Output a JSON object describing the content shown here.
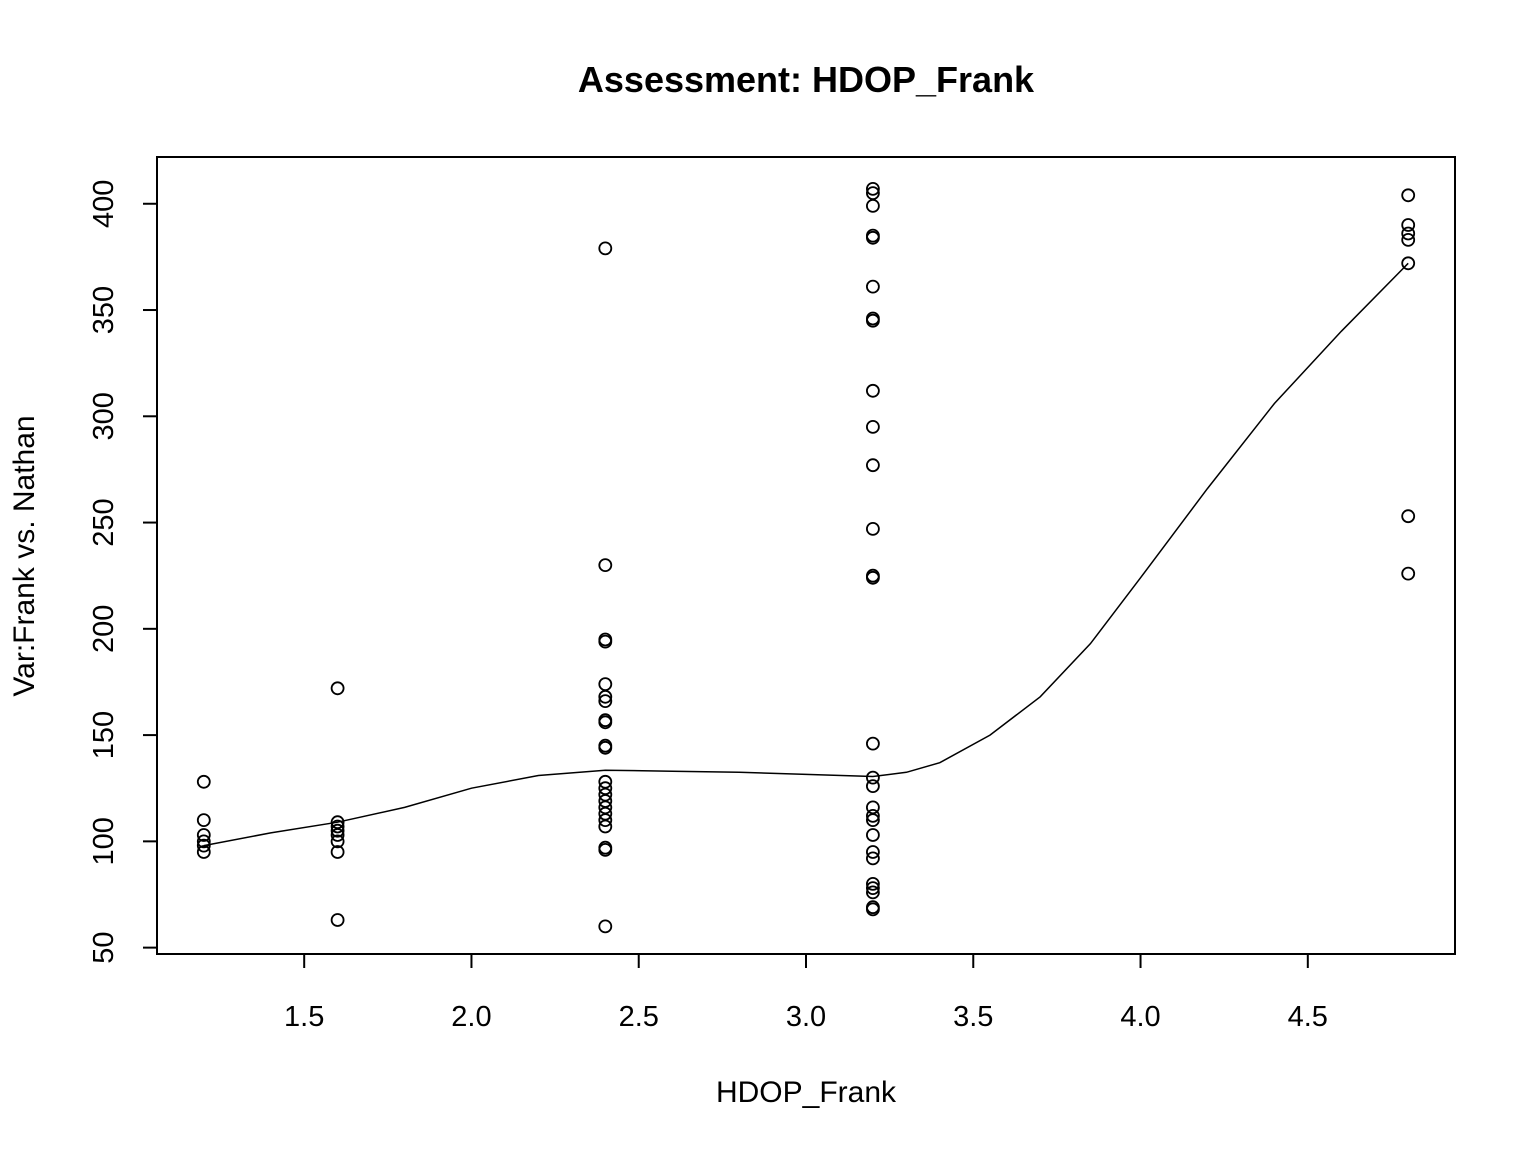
{
  "chart_data": {
    "type": "scatter",
    "title": "Assessment: HDOP_Frank",
    "xlabel": "HDOP_Frank",
    "ylabel": "Var:Frank vs. Nathan",
    "xlim": [
      1.06,
      4.94
    ],
    "ylim": [
      47,
      422
    ],
    "xticks": [
      1.5,
      2.0,
      2.5,
      3.0,
      3.5,
      4.0,
      4.5
    ],
    "xtick_labels": [
      "1.5",
      "2.0",
      "2.5",
      "3.0",
      "3.5",
      "4.0",
      "4.5"
    ],
    "yticks": [
      50,
      100,
      150,
      200,
      250,
      300,
      350,
      400
    ],
    "ytick_labels": [
      "50",
      "100",
      "150",
      "200",
      "250",
      "300",
      "350",
      "400"
    ],
    "grid": false,
    "legend": "none",
    "points": [
      {
        "x": 1.2,
        "y": 128
      },
      {
        "x": 1.2,
        "y": 110
      },
      {
        "x": 1.2,
        "y": 103
      },
      {
        "x": 1.2,
        "y": 100
      },
      {
        "x": 1.2,
        "y": 98
      },
      {
        "x": 1.2,
        "y": 95
      },
      {
        "x": 1.6,
        "y": 172
      },
      {
        "x": 1.6,
        "y": 109
      },
      {
        "x": 1.6,
        "y": 107
      },
      {
        "x": 1.6,
        "y": 105
      },
      {
        "x": 1.6,
        "y": 103
      },
      {
        "x": 1.6,
        "y": 100
      },
      {
        "x": 1.6,
        "y": 95
      },
      {
        "x": 1.6,
        "y": 63
      },
      {
        "x": 2.4,
        "y": 379
      },
      {
        "x": 2.4,
        "y": 230
      },
      {
        "x": 2.4,
        "y": 195
      },
      {
        "x": 2.4,
        "y": 194
      },
      {
        "x": 2.4,
        "y": 174
      },
      {
        "x": 2.4,
        "y": 168
      },
      {
        "x": 2.4,
        "y": 166
      },
      {
        "x": 2.4,
        "y": 157
      },
      {
        "x": 2.4,
        "y": 156
      },
      {
        "x": 2.4,
        "y": 145
      },
      {
        "x": 2.4,
        "y": 144
      },
      {
        "x": 2.4,
        "y": 128
      },
      {
        "x": 2.4,
        "y": 125
      },
      {
        "x": 2.4,
        "y": 122
      },
      {
        "x": 2.4,
        "y": 119
      },
      {
        "x": 2.4,
        "y": 116
      },
      {
        "x": 2.4,
        "y": 113
      },
      {
        "x": 2.4,
        "y": 110
      },
      {
        "x": 2.4,
        "y": 107
      },
      {
        "x": 2.4,
        "y": 97
      },
      {
        "x": 2.4,
        "y": 96
      },
      {
        "x": 2.4,
        "y": 60
      },
      {
        "x": 3.2,
        "y": 407
      },
      {
        "x": 3.2,
        "y": 405
      },
      {
        "x": 3.2,
        "y": 399
      },
      {
        "x": 3.2,
        "y": 385
      },
      {
        "x": 3.2,
        "y": 384
      },
      {
        "x": 3.2,
        "y": 361
      },
      {
        "x": 3.2,
        "y": 346
      },
      {
        "x": 3.2,
        "y": 345
      },
      {
        "x": 3.2,
        "y": 312
      },
      {
        "x": 3.2,
        "y": 295
      },
      {
        "x": 3.2,
        "y": 277
      },
      {
        "x": 3.2,
        "y": 247
      },
      {
        "x": 3.2,
        "y": 225
      },
      {
        "x": 3.2,
        "y": 224
      },
      {
        "x": 3.2,
        "y": 146
      },
      {
        "x": 3.2,
        "y": 130
      },
      {
        "x": 3.2,
        "y": 126
      },
      {
        "x": 3.2,
        "y": 116
      },
      {
        "x": 3.2,
        "y": 112
      },
      {
        "x": 3.2,
        "y": 110
      },
      {
        "x": 3.2,
        "y": 103
      },
      {
        "x": 3.2,
        "y": 95
      },
      {
        "x": 3.2,
        "y": 92
      },
      {
        "x": 3.2,
        "y": 80
      },
      {
        "x": 3.2,
        "y": 78
      },
      {
        "x": 3.2,
        "y": 76
      },
      {
        "x": 3.2,
        "y": 69
      },
      {
        "x": 3.2,
        "y": 68
      },
      {
        "x": 4.8,
        "y": 404
      },
      {
        "x": 4.8,
        "y": 390
      },
      {
        "x": 4.8,
        "y": 386
      },
      {
        "x": 4.8,
        "y": 383
      },
      {
        "x": 4.8,
        "y": 372
      },
      {
        "x": 4.8,
        "y": 253
      },
      {
        "x": 4.8,
        "y": 226
      }
    ],
    "smooth_line": [
      {
        "x": 1.2,
        "y": 98
      },
      {
        "x": 1.4,
        "y": 104
      },
      {
        "x": 1.6,
        "y": 109
      },
      {
        "x": 1.8,
        "y": 116
      },
      {
        "x": 2.0,
        "y": 125
      },
      {
        "x": 2.2,
        "y": 131
      },
      {
        "x": 2.4,
        "y": 133.5
      },
      {
        "x": 2.6,
        "y": 133
      },
      {
        "x": 2.8,
        "y": 132.5
      },
      {
        "x": 3.0,
        "y": 131.5
      },
      {
        "x": 3.2,
        "y": 130.5
      },
      {
        "x": 3.3,
        "y": 132.5
      },
      {
        "x": 3.4,
        "y": 137
      },
      {
        "x": 3.55,
        "y": 150
      },
      {
        "x": 3.7,
        "y": 168
      },
      {
        "x": 3.85,
        "y": 193
      },
      {
        "x": 4.0,
        "y": 224
      },
      {
        "x": 4.2,
        "y": 266
      },
      {
        "x": 4.4,
        "y": 306
      },
      {
        "x": 4.6,
        "y": 340
      },
      {
        "x": 4.8,
        "y": 372
      }
    ]
  }
}
